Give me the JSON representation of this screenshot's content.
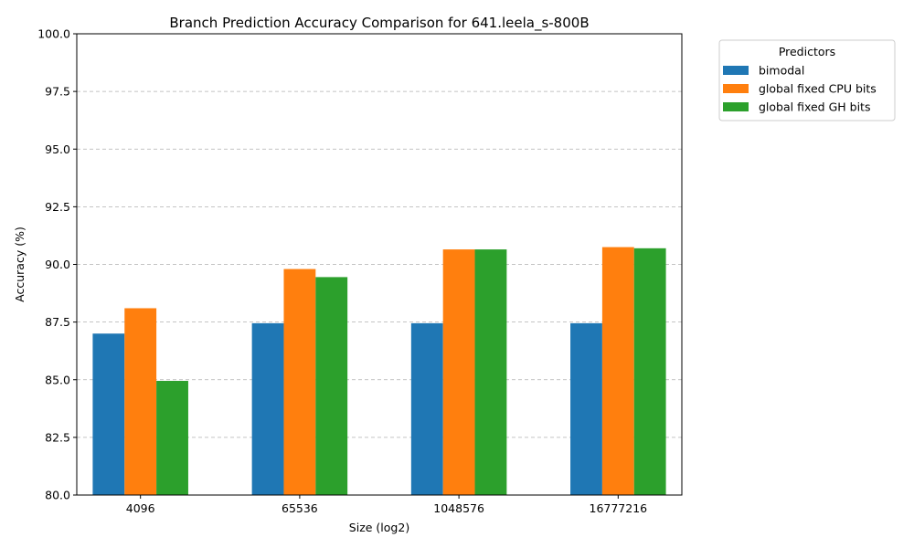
{
  "chart_data": {
    "type": "bar",
    "title": "Branch Prediction Accuracy Comparison for 641.leela_s-800B",
    "xlabel": "Size (log2)",
    "ylabel": "Accuracy (%)",
    "ylim": [
      80,
      100
    ],
    "yticks": [
      "80.0",
      "82.5",
      "85.0",
      "87.5",
      "90.0",
      "92.5",
      "95.0",
      "97.5",
      "100.0"
    ],
    "categories": [
      "4096",
      "65536",
      "1048576",
      "16777216"
    ],
    "series": [
      {
        "name": "bimodal",
        "color": "#1f77b4",
        "values": [
          87.0,
          87.45,
          87.45,
          87.45
        ]
      },
      {
        "name": "global fixed CPU bits",
        "color": "#ff7f0e",
        "values": [
          88.1,
          89.8,
          90.65,
          90.75
        ]
      },
      {
        "name": "global fixed GH bits",
        "color": "#2ca02c",
        "values": [
          84.95,
          89.45,
          90.65,
          90.7
        ]
      }
    ],
    "legend_title": "Predictors",
    "legend_position": "outside-top-right",
    "grid": "y-dashed"
  }
}
